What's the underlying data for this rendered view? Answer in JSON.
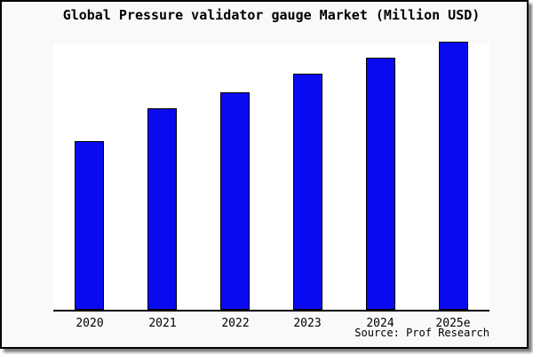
{
  "title": "Global Pressure validator gauge Market (Million USD)",
  "source_credit": "Source: Prof Research",
  "colors": {
    "bar_fill": "#0a0af0",
    "bar_border": "#000000",
    "frame_background": "#f9f9f9",
    "plot_background": "#ffffff",
    "axis": "#000000",
    "text": "#000000"
  },
  "chart_data": {
    "type": "bar",
    "title": "Global Pressure validator gauge Market (Million USD)",
    "categories": [
      "2020",
      "2021",
      "2022",
      "2023",
      "2024",
      "2025e"
    ],
    "values": [
      63,
      75,
      81,
      88,
      94,
      100
    ],
    "xlabel": "",
    "ylabel": "",
    "ylim": [
      0,
      100
    ],
    "y_axis_visible": false,
    "grid": false,
    "legend_position": "none",
    "units_note": "values estimated relative to 2025e = 100; no y-axis labels shown"
  }
}
